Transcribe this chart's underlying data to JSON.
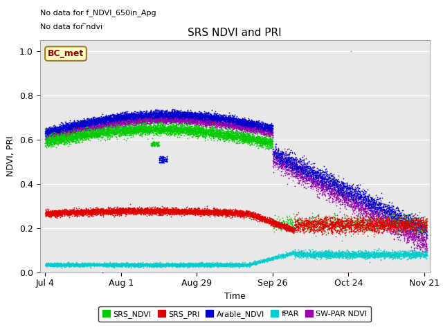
{
  "title": "SRS NDVI and PRI",
  "ylabel": "NDVI, PRI",
  "xlabel": "Time",
  "note_line1": "No data for f_NDVI_650in_Apg",
  "note_line2": "No data for ̅ndvi",
  "bc_met_label": "BC_met",
  "ylim": [
    0.0,
    1.05
  ],
  "yticks": [
    0.0,
    0.2,
    0.4,
    0.6,
    0.8,
    1.0
  ],
  "xtick_labels": [
    "Jul 4",
    "Aug 1",
    "Aug 29",
    "Sep 26",
    "Oct 24",
    "Nov 21"
  ],
  "xtick_days": [
    0,
    28,
    56,
    84,
    112,
    140
  ],
  "fig_bg_color": "#ffffff",
  "axes_bg_color": "#e8e8e8",
  "legend_entries": [
    "SRS_NDVI",
    "SRS_PRI",
    "Arable_NDVI",
    "fPAR",
    "SW-PAR NDVI"
  ],
  "legend_colors": [
    "#00cc00",
    "#dd0000",
    "#0000cc",
    "#00cccc",
    "#9900aa"
  ],
  "srs_ndvi_color": "#00cc00",
  "srs_pri_color": "#dd0000",
  "arable_ndvi_color": "#0000cc",
  "fpar_color": "#00cccc",
  "sw_par_ndvi_color": "#9900aa"
}
